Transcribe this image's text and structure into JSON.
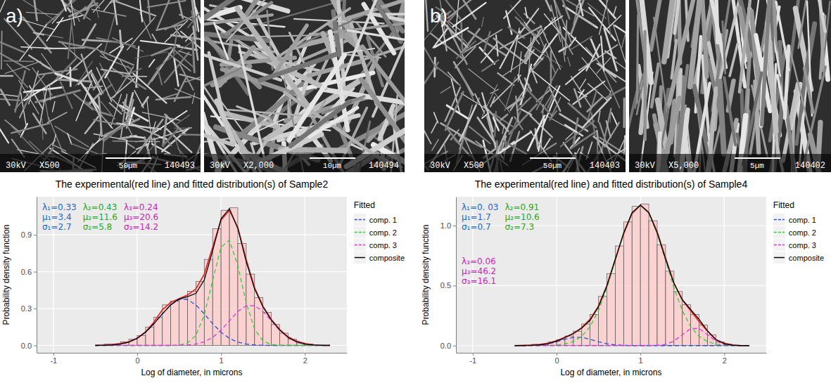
{
  "panel_labels": [
    "a)",
    "b)"
  ],
  "micrographs": [
    {
      "voltage": "30kV",
      "magnification": "X500",
      "scale_bar": "50µm",
      "id": "140493"
    },
    {
      "voltage": "30kV",
      "magnification": "X2,000",
      "scale_bar": "10µm",
      "id": "140494"
    },
    {
      "voltage": "30kV",
      "magnification": "X500",
      "scale_bar": "50µm",
      "id": "140403"
    },
    {
      "voltage": "30kV",
      "magnification": "X5,000",
      "scale_bar": "5µm",
      "id": "140402"
    }
  ],
  "chart_data": [
    {
      "type": "histogram",
      "title": "The experimental(red line) and fitted distribution(s) of Sample2",
      "x_label": "Log of diameter, in microns",
      "y_label": "Probability density function",
      "xlim": [
        -1.2,
        2.5
      ],
      "xticks": [
        -1,
        0,
        1,
        2
      ],
      "ylim": [
        -0.06,
        1.21
      ],
      "yticks": [
        {
          "value": 0,
          "label": "0.0"
        },
        0.3,
        0.6,
        0.9
      ],
      "grid": true,
      "legend": "right",
      "legend_title": "Fitted",
      "histogram": {
        "color": "#ffcccc",
        "bins": [
          -0.5,
          -0.4,
          -0.3,
          -0.2,
          -0.1,
          0,
          0.1,
          0.2,
          0.3,
          0.4,
          0.5,
          0.6,
          0.7,
          0.8,
          0.9,
          1.0,
          1.1,
          1.2,
          1.3,
          1.4,
          1.5,
          1.6,
          1.7,
          1.8,
          1.9,
          2.0,
          2.1,
          2.2
        ],
        "counts": [
          0.0,
          0.01,
          0.01,
          0.03,
          0.05,
          0.08,
          0.15,
          0.23,
          0.33,
          0.36,
          0.38,
          0.44,
          0.52,
          0.7,
          0.95,
          1.1,
          1.12,
          0.83,
          0.58,
          0.39,
          0.27,
          0.17,
          0.1,
          0.05,
          0.02,
          0.01,
          0.0
        ]
      },
      "x": [
        -0.5,
        -0.4,
        -0.3,
        -0.2,
        -0.1,
        0,
        0.1,
        0.2,
        0.3,
        0.4,
        0.5,
        0.6,
        0.7,
        0.8,
        0.9,
        1.0,
        1.1,
        1.2,
        1.3,
        1.4,
        1.5,
        1.6,
        1.7,
        1.8,
        1.9,
        2.0,
        2.1,
        2.2,
        2.3
      ],
      "series": [
        {
          "color": "#e8261f",
          "line_style": "solid",
          "values": [
            0.0,
            0.003,
            0.008,
            0.015,
            0.03,
            0.06,
            0.11,
            0.19,
            0.29,
            0.35,
            0.38,
            0.41,
            0.46,
            0.58,
            0.8,
            1.02,
            1.1,
            0.96,
            0.7,
            0.47,
            0.32,
            0.21,
            0.13,
            0.07,
            0.035,
            0.015,
            0.005,
            0.0,
            0.0
          ]
        },
        {
          "name": "comp. 1",
          "color": "#2a4fd6",
          "line_style": "dashed",
          "values": [
            0.0,
            0.001,
            0.004,
            0.011,
            0.027,
            0.057,
            0.107,
            0.177,
            0.257,
            0.33,
            0.374,
            0.374,
            0.33,
            0.257,
            0.177,
            0.107,
            0.057,
            0.027,
            0.011,
            0.004,
            0.001,
            0.0,
            0.0,
            0.0,
            0.0,
            0.0,
            0.0,
            0.0,
            0.0
          ]
        },
        {
          "name": "comp. 2",
          "color": "#33cc33",
          "line_style": "dashed",
          "values": [
            0.0,
            0.0,
            0.0,
            0.0,
            0.0,
            0.0,
            0.0,
            0.0,
            0.0,
            0.0,
            0.003,
            0.019,
            0.082,
            0.247,
            0.529,
            0.8,
            0.856,
            0.65,
            0.349,
            0.133,
            0.036,
            0.007,
            0.001,
            0.0,
            0.0,
            0.0,
            0.0,
            0.0,
            0.0
          ]
        },
        {
          "name": "comp. 3",
          "color": "#dd33dd",
          "line_style": "dashed",
          "values": [
            0.0,
            0.0,
            0.0,
            0.0,
            0.0,
            0.0,
            0.0,
            0.0,
            0.0,
            0.0,
            0.001,
            0.004,
            0.011,
            0.029,
            0.065,
            0.124,
            0.2,
            0.276,
            0.323,
            0.323,
            0.276,
            0.2,
            0.124,
            0.065,
            0.029,
            0.011,
            0.004,
            0.001,
            0.0
          ]
        },
        {
          "name": "composite",
          "color": "#000000",
          "line_style": "solid",
          "values": [
            0.0,
            0.001,
            0.004,
            0.011,
            0.027,
            0.057,
            0.107,
            0.177,
            0.257,
            0.33,
            0.378,
            0.397,
            0.423,
            0.533,
            0.771,
            1.031,
            1.113,
            0.953,
            0.683,
            0.46,
            0.313,
            0.207,
            0.125,
            0.065,
            0.029,
            0.011,
            0.004,
            0.001,
            0.0
          ]
        }
      ],
      "annotations": [
        {
          "color": "#2266cc",
          "lines": [
            "λ₁=0.33",
            "μ₁=3.4",
            "σ₁=2.7"
          ]
        },
        {
          "color": "#22aa22",
          "lines": [
            "λ₂=0.43",
            "μ₂=11.6",
            "σ₂=5.8"
          ]
        },
        {
          "color": "#cc22bb",
          "lines": [
            "λ₃=0.24",
            "μ₃=20.6",
            "σ₃=14.2"
          ]
        }
      ]
    },
    {
      "type": "histogram",
      "title": "The experimental(red line) and fitted distribution(s) of Sample4",
      "x_label": "Log of diameter, in microns",
      "y_label": "Probability density function",
      "xlim": [
        -1.2,
        2.5
      ],
      "xticks": [
        -1,
        0,
        1,
        2
      ],
      "ylim": [
        -0.06,
        1.24
      ],
      "yticks": [
        {
          "value": 0,
          "label": "0.0"
        },
        0.5,
        {
          "value": 1,
          "label": "1.0"
        }
      ],
      "grid": true,
      "legend": "right",
      "legend_title": "Fitted",
      "histogram": {
        "color": "#ffcccc",
        "bins": [
          -0.5,
          -0.4,
          -0.3,
          -0.2,
          -0.1,
          0,
          0.1,
          0.2,
          0.3,
          0.4,
          0.5,
          0.6,
          0.7,
          0.8,
          0.9,
          1.0,
          1.1,
          1.2,
          1.3,
          1.4,
          1.5,
          1.6,
          1.7,
          1.8,
          1.9,
          2.0,
          2.1,
          2.2
        ],
        "counts": [
          0.0,
          0.0,
          0.01,
          0.01,
          0.03,
          0.05,
          0.08,
          0.12,
          0.18,
          0.26,
          0.41,
          0.6,
          0.83,
          1.03,
          1.16,
          1.18,
          1.04,
          0.84,
          0.62,
          0.45,
          0.34,
          0.26,
          0.17,
          0.09,
          0.03,
          0.01,
          0.0
        ]
      },
      "x": [
        -0.5,
        -0.4,
        -0.3,
        -0.2,
        -0.1,
        0,
        0.1,
        0.2,
        0.3,
        0.4,
        0.5,
        0.6,
        0.7,
        0.8,
        0.9,
        1.0,
        1.1,
        1.2,
        1.3,
        1.4,
        1.5,
        1.6,
        1.7,
        1.8,
        1.9,
        2.0,
        2.1,
        2.2,
        2.3
      ],
      "series": [
        {
          "color": "#e8261f",
          "line_style": "solid",
          "values": [
            0.0,
            0.002,
            0.005,
            0.01,
            0.02,
            0.04,
            0.07,
            0.1,
            0.15,
            0.22,
            0.33,
            0.5,
            0.72,
            0.93,
            1.1,
            1.17,
            1.11,
            0.95,
            0.73,
            0.52,
            0.38,
            0.29,
            0.2,
            0.12,
            0.05,
            0.02,
            0.005,
            0.0,
            0.0
          ]
        },
        {
          "name": "comp. 1",
          "color": "#2a4fd6",
          "line_style": "dashed",
          "values": [
            0.0,
            0.0,
            0.002,
            0.006,
            0.015,
            0.032,
            0.053,
            0.068,
            0.068,
            0.053,
            0.032,
            0.015,
            0.006,
            0.002,
            0.0,
            0.0,
            0.0,
            0.0,
            0.0,
            0.0,
            0.0,
            0.0,
            0.0,
            0.0,
            0.0,
            0.0,
            0.0,
            0.0,
            0.0
          ]
        },
        {
          "name": "comp. 2",
          "color": "#33cc33",
          "line_style": "dashed",
          "values": [
            0.0,
            0.0,
            0.0,
            0.0,
            0.001,
            0.005,
            0.013,
            0.033,
            0.077,
            0.158,
            0.291,
            0.481,
            0.71,
            0.937,
            1.107,
            1.17,
            1.107,
            0.937,
            0.71,
            0.481,
            0.291,
            0.158,
            0.077,
            0.033,
            0.013,
            0.005,
            0.001,
            0.0,
            0.0
          ]
        },
        {
          "name": "comp. 3",
          "color": "#dd33dd",
          "line_style": "dashed",
          "values": [
            0.0,
            0.0,
            0.0,
            0.0,
            0.0,
            0.0,
            0.0,
            0.0,
            0.0,
            0.0,
            0.0,
            0.0,
            0.0,
            0.0,
            0.0,
            0.0,
            0.0,
            0.002,
            0.01,
            0.037,
            0.091,
            0.142,
            0.142,
            0.091,
            0.037,
            0.01,
            0.002,
            0.0,
            0.0
          ]
        },
        {
          "name": "composite",
          "color": "#000000",
          "line_style": "solid",
          "values": [
            0.0,
            0.0,
            0.002,
            0.006,
            0.016,
            0.037,
            0.066,
            0.101,
            0.145,
            0.211,
            0.323,
            0.496,
            0.716,
            0.939,
            1.107,
            1.17,
            1.107,
            0.939,
            0.72,
            0.518,
            0.382,
            0.3,
            0.219,
            0.124,
            0.05,
            0.015,
            0.003,
            0.0,
            0.0
          ]
        }
      ],
      "annotations": [
        {
          "color": "#2266cc",
          "lines": [
            "λ₁=0. 03",
            "μ₁=1.7",
            "σ₁=0.7"
          ]
        },
        {
          "color": "#22aa22",
          "lines": [
            "λ₂=0.91",
            "μ₂=10.6",
            "σ₂=7.3"
          ]
        },
        {
          "color": "#cc22bb",
          "lines": [
            "λ₃=0.06",
            "μ₃=46.2",
            "σ₃=16.1"
          ]
        }
      ]
    }
  ]
}
